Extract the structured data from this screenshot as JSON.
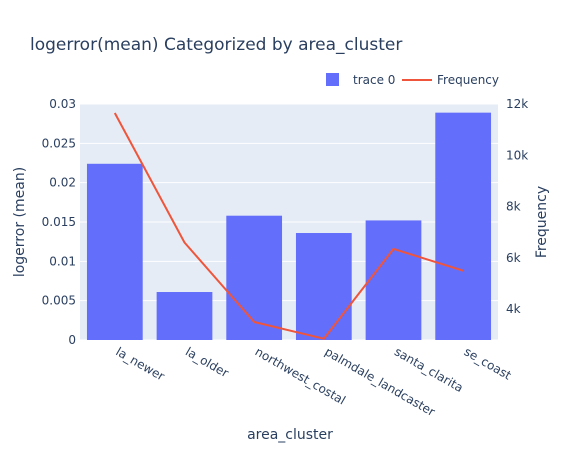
{
  "chart_data": {
    "type": "bar+line",
    "title": "logerror(mean) Categorized by area_cluster",
    "xlabel": "area_cluster",
    "ylabel": "logerror (mean)",
    "y2label": "Frequency",
    "categories": [
      "la_newer",
      "la_older",
      "northwest_costal",
      "palmdale_landcaster",
      "santa_clarita",
      "se_coast"
    ],
    "series": [
      {
        "name": "trace 0",
        "type": "bar",
        "axis": "y",
        "color": "#636efa",
        "values": [
          0.0224,
          0.0061,
          0.0158,
          0.0136,
          0.0152,
          0.0289
        ]
      },
      {
        "name": "Frequency",
        "type": "line",
        "axis": "y2",
        "color": "#ef553b",
        "values": [
          11650,
          6600,
          3500,
          2850,
          6350,
          5500
        ]
      }
    ],
    "ylim": [
      0,
      0.03
    ],
    "y2lim": [
      2800,
      12000
    ],
    "yticks": [
      0,
      0.005,
      0.01,
      0.015,
      0.02,
      0.025,
      0.03
    ],
    "ytick_labels": [
      "0",
      "0.005",
      "0.01",
      "0.015",
      "0.02",
      "0.025",
      "0.03"
    ],
    "y2ticks": [
      4000,
      6000,
      8000,
      10000,
      12000
    ],
    "y2tick_labels": [
      "4k",
      "6k",
      "8k",
      "10k",
      "12k"
    ],
    "legend_position": "top-right",
    "grid": true,
    "plot_background": "#e5ecf6"
  }
}
